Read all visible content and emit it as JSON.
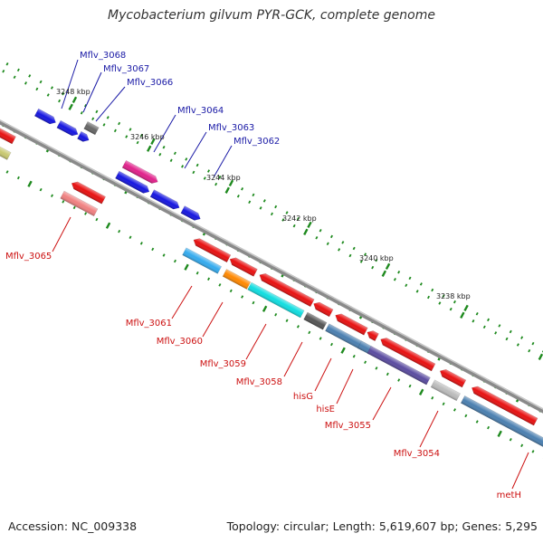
{
  "title": "Mycobacterium gilvum PYR-GCK, complete genome",
  "footer": {
    "accession": "Accession: NC_009338",
    "summary": "Topology: circular; Length: 5,619,607 bp; Genes: 5,295"
  },
  "ruler_labels": [
    "3248 kbp",
    "3246 kbp",
    "3244 kbp",
    "3242 kbp",
    "3240 kbp",
    "3238 kbp"
  ],
  "forward_genes": [
    "Mflv_3068",
    "Mflv_3067",
    "Mflv_3066",
    "Mflv_3064",
    "Mflv_3063",
    "Mflv_3062"
  ],
  "reverse_genes": [
    "Mflv_3065",
    "Mflv_3061",
    "Mflv_3060",
    "Mflv_3059",
    "Mflv_3058",
    "hisG",
    "hisE",
    "Mflv_3055",
    "Mflv_3054",
    "metH"
  ],
  "colors": {
    "forward_label": "#1a1aa6",
    "reverse_label": "#cc1111",
    "backbone": "#888888",
    "ticks": "#228b22"
  }
}
